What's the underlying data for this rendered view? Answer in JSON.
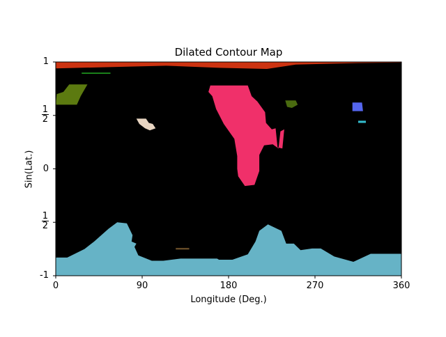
{
  "chart_data": {
    "type": "map",
    "title": "Dilated Contour Map",
    "xlabel": "Longitude (Deg.)",
    "ylabel": "Sin(Lat.)",
    "xlim": [
      0,
      360
    ],
    "ylim": [
      -1,
      1
    ],
    "xticks": [
      "0",
      "90",
      "180",
      "270",
      "360"
    ],
    "yticks": [
      {
        "value": 1,
        "label": "1",
        "fraction": false
      },
      {
        "value": 0.5,
        "num": "1",
        "den": "2",
        "fraction": true
      },
      {
        "value": 0,
        "label": "0",
        "fraction": false
      },
      {
        "value": -0.5,
        "num": "1",
        "den": "2",
        "fraction": true
      },
      {
        "value": -1,
        "label": "-1",
        "fraction": false
      }
    ],
    "background_color": "#000000",
    "regions": [
      {
        "color": "#cc3311",
        "points": [
          [
            0,
            1
          ],
          [
            360,
            1
          ],
          [
            360,
            0.995
          ],
          [
            315,
            0.99
          ],
          [
            250,
            0.975
          ],
          [
            220,
            0.935
          ],
          [
            170,
            0.945
          ],
          [
            115,
            0.965
          ],
          [
            0,
            0.94
          ]
        ]
      },
      {
        "color": "#66b3c6",
        "points": [
          [
            0,
            -1
          ],
          [
            360,
            -1
          ],
          [
            360,
            -0.795
          ],
          [
            328,
            -0.795
          ],
          [
            310,
            -0.87
          ],
          [
            290,
            -0.82
          ],
          [
            276,
            -0.745
          ],
          [
            267,
            -0.745
          ],
          [
            255,
            -0.76
          ],
          [
            248,
            -0.7
          ],
          [
            240,
            -0.7
          ],
          [
            235,
            -0.58
          ],
          [
            221,
            -0.52
          ],
          [
            212,
            -0.58
          ],
          [
            208,
            -0.68
          ],
          [
            200,
            -0.8
          ],
          [
            184,
            -0.85
          ],
          [
            170,
            -0.85
          ],
          [
            168,
            -0.84
          ],
          [
            130,
            -0.84
          ],
          [
            112,
            -0.86
          ],
          [
            100,
            -0.86
          ],
          [
            86,
            -0.81
          ],
          [
            82,
            -0.73
          ],
          [
            84,
            -0.7
          ],
          [
            79,
            -0.68
          ],
          [
            80,
            -0.62
          ],
          [
            74,
            -0.51
          ],
          [
            64,
            -0.5
          ],
          [
            55,
            -0.56
          ],
          [
            40,
            -0.68
          ],
          [
            30,
            -0.75
          ],
          [
            12,
            -0.83
          ],
          [
            0,
            -0.83
          ]
        ]
      },
      {
        "color": "#f0306a",
        "points": [
          [
            161,
            0.78
          ],
          [
            200,
            0.78
          ],
          [
            204,
            0.68
          ],
          [
            210,
            0.63
          ],
          [
            218,
            0.53
          ],
          [
            219,
            0.43
          ],
          [
            225,
            0.37
          ],
          [
            229,
            0.38
          ],
          [
            231,
            0.2
          ],
          [
            236,
            0.19
          ],
          [
            238,
            0.37
          ],
          [
            234,
            0.35
          ],
          [
            232,
            0.19
          ],
          [
            226,
            0.23
          ],
          [
            217,
            0.22
          ],
          [
            212,
            0.13
          ],
          [
            212,
            -0.02
          ],
          [
            207,
            -0.15
          ],
          [
            197,
            -0.16
          ],
          [
            190,
            -0.07
          ],
          [
            189,
            0.0
          ],
          [
            189,
            0.12
          ],
          [
            186,
            0.28
          ],
          [
            175,
            0.42
          ],
          [
            167,
            0.56
          ],
          [
            163,
            0.68
          ],
          [
            159,
            0.72
          ]
        ]
      },
      {
        "color": "#5c7a10",
        "points": [
          [
            14,
            0.79
          ],
          [
            33,
            0.79
          ],
          [
            26,
            0.68
          ],
          [
            22,
            0.6
          ],
          [
            0,
            0.6
          ],
          [
            1,
            0.7
          ],
          [
            8,
            0.72
          ]
        ]
      },
      {
        "color": "#22aa22",
        "points": [
          [
            27,
            0.9
          ],
          [
            57,
            0.9
          ],
          [
            57,
            0.89
          ],
          [
            27,
            0.89
          ]
        ]
      },
      {
        "color": "#e8d5c2",
        "points": [
          [
            84,
            0.47
          ],
          [
            94,
            0.47
          ],
          [
            97,
            0.43
          ],
          [
            101,
            0.42
          ],
          [
            104,
            0.38
          ],
          [
            98,
            0.36
          ],
          [
            93,
            0.38
          ],
          [
            87,
            0.42
          ]
        ]
      },
      {
        "color": "#4a6b10",
        "points": [
          [
            239,
            0.64
          ],
          [
            250,
            0.64
          ],
          [
            252,
            0.6
          ],
          [
            246,
            0.57
          ],
          [
            241,
            0.58
          ]
        ]
      },
      {
        "color": "#5566ee",
        "points": [
          [
            309,
            0.62
          ],
          [
            319,
            0.62
          ],
          [
            320,
            0.54
          ],
          [
            309,
            0.54
          ]
        ]
      },
      {
        "color": "#33bbcc",
        "points": [
          [
            315,
            0.45
          ],
          [
            323,
            0.45
          ],
          [
            323,
            0.43
          ],
          [
            315,
            0.43
          ]
        ]
      },
      {
        "color": "#6b4f2a",
        "points": [
          [
            125,
            -0.74
          ],
          [
            139,
            -0.74
          ],
          [
            139,
            -0.755
          ],
          [
            125,
            -0.755
          ]
        ]
      }
    ]
  }
}
